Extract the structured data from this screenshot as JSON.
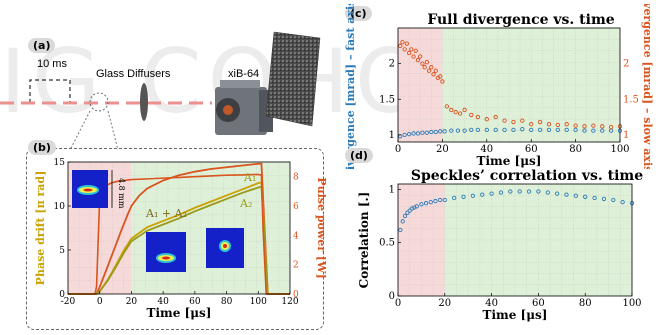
{
  "watermark": "IG COHO",
  "panel_a": {
    "label": "(a)",
    "pulse_label": "10 ms",
    "diffuser_label": "Glass Diffusers",
    "camera_label": "xiB-64"
  },
  "panel_b": {
    "label": "(b)",
    "inset_scale": "4.8 mm",
    "annotations": {
      "sum": "A₁ + A₂",
      "a1": "A₁",
      "a2": "A₂"
    }
  },
  "panel_c": {
    "label": "(c)"
  },
  "panel_d": {
    "label": "(d)"
  },
  "colors": {
    "blue": "#2b7bba",
    "orange": "#d9541e",
    "gold": "#c9a200",
    "green_bg": "#dff0d8",
    "red_bg": "#f6dada"
  },
  "chart_data": [
    {
      "id": "b",
      "type": "line",
      "title": "",
      "xlabel": "Time [μs]",
      "ylabel": "Phase drift [π rad]",
      "y2label": "Pulse power [W]",
      "xlim": [
        -20,
        120
      ],
      "ylim": [
        0,
        15
      ],
      "y2lim": [
        0,
        9
      ],
      "xticks": [
        -20,
        0,
        20,
        40,
        60,
        80,
        100,
        120
      ],
      "yticks": [
        0,
        5,
        10,
        15
      ],
      "y2ticks": [
        0,
        2,
        4,
        6,
        8
      ],
      "regions": [
        {
          "from": -20,
          "to": 20,
          "color": "red_bg"
        },
        {
          "from": 20,
          "to": 120,
          "color": "green_bg"
        }
      ],
      "series": [
        {
          "name": "A₁ + A₂",
          "axis": "left",
          "color": "#d9541e",
          "x": [
            -20,
            -2,
            0,
            3,
            6,
            10,
            14,
            18,
            20,
            25,
            30,
            40,
            50,
            60,
            70,
            80,
            90,
            100,
            102,
            106,
            120
          ],
          "y": [
            0,
            0,
            0.8,
            2.2,
            3.6,
            5.5,
            7.4,
            9.2,
            10,
            11.2,
            12,
            12.9,
            13.5,
            13.9,
            14.2,
            14.4,
            14.6,
            14.8,
            14.8,
            0,
            0
          ]
        },
        {
          "name": "A₁",
          "axis": "left",
          "color": "#c9a200",
          "x": [
            -20,
            -2,
            0,
            5,
            10,
            15,
            20,
            30,
            40,
            50,
            60,
            70,
            80,
            90,
            100,
            102,
            106,
            120
          ],
          "y": [
            0,
            0,
            0.3,
            1.6,
            3.2,
            4.9,
            6.3,
            7.6,
            8.3,
            9.0,
            9.8,
            10.5,
            11.2,
            11.9,
            12.6,
            12.7,
            0,
            0
          ]
        },
        {
          "name": "A₂",
          "axis": "left",
          "color": "#9a9a1a",
          "x": [
            -20,
            -2,
            0,
            5,
            10,
            15,
            20,
            30,
            40,
            50,
            60,
            70,
            80,
            90,
            100,
            102,
            106,
            120
          ],
          "y": [
            0,
            0,
            0.3,
            1.5,
            3.0,
            4.6,
            6.0,
            7.2,
            7.9,
            8.6,
            9.4,
            10.1,
            10.8,
            11.5,
            12.1,
            12.2,
            0,
            0
          ]
        },
        {
          "name": "Pulse power",
          "axis": "right",
          "color": "#d9541e",
          "x": [
            -20,
            -3,
            -2,
            0,
            4,
            8,
            12,
            20,
            30,
            40,
            50,
            60,
            70,
            80,
            90,
            100,
            102,
            103,
            105,
            120
          ],
          "y": [
            0,
            0,
            0.5,
            6.6,
            7.4,
            7.6,
            7.7,
            7.8,
            7.85,
            7.9,
            7.95,
            8.0,
            8.05,
            8.1,
            8.12,
            8.15,
            8.1,
            4.5,
            0,
            0
          ]
        }
      ]
    },
    {
      "id": "c",
      "type": "scatter",
      "title": "Full divergence vs. time",
      "xlabel": "Time [μs]",
      "ylabel": "Divergence [mrad] – fast axis –",
      "y2label": "Divergence [mrad] – slow axis –",
      "xlim": [
        0,
        100
      ],
      "ylim": [
        0.9,
        2.5
      ],
      "y2lim": [
        0.9,
        2.5
      ],
      "xticks": [
        0,
        20,
        40,
        60,
        80,
        100
      ],
      "yticks": [
        1,
        1.5,
        2
      ],
      "y2ticks": [
        1,
        1.5,
        2
      ],
      "regions": [
        {
          "from": 0,
          "to": 20,
          "color": "red_bg"
        },
        {
          "from": 20,
          "to": 100,
          "color": "green_bg"
        }
      ],
      "series": [
        {
          "name": "fast axis",
          "color": "#2b7bba",
          "x": [
            1,
            3,
            5,
            7,
            9,
            11,
            13,
            15,
            17,
            19,
            21,
            24,
            27,
            30,
            33,
            36,
            40,
            44,
            48,
            52,
            56,
            60,
            64,
            68,
            72,
            76,
            80,
            84,
            88,
            92,
            96,
            100
          ],
          "y": [
            0.98,
            1.0,
            1.01,
            1.02,
            1.02,
            1.03,
            1.03,
            1.04,
            1.04,
            1.05,
            1.05,
            1.06,
            1.06,
            1.06,
            1.07,
            1.07,
            1.07,
            1.07,
            1.07,
            1.07,
            1.08,
            1.07,
            1.07,
            1.07,
            1.07,
            1.07,
            1.07,
            1.06,
            1.06,
            1.06,
            1.06,
            1.06
          ]
        },
        {
          "name": "slow axis",
          "color": "#d9541e",
          "x": [
            1,
            2,
            3,
            4,
            5,
            6,
            7,
            8,
            9,
            10,
            11,
            12,
            13,
            14,
            15,
            16,
            17,
            18,
            19,
            20,
            22,
            24,
            26,
            28,
            30,
            33,
            36,
            40,
            44,
            48,
            52,
            56,
            60,
            64,
            68,
            72,
            76,
            80,
            84,
            88,
            92,
            96,
            100
          ],
          "y": [
            2.25,
            2.3,
            2.2,
            2.28,
            2.15,
            2.2,
            2.1,
            2.18,
            2.05,
            2.1,
            2.0,
            1.95,
            2.02,
            1.9,
            1.95,
            1.85,
            1.9,
            1.8,
            1.82,
            1.75,
            1.4,
            1.35,
            1.32,
            1.3,
            1.35,
            1.28,
            1.25,
            1.22,
            1.25,
            1.2,
            1.18,
            1.2,
            1.15,
            1.18,
            1.15,
            1.14,
            1.15,
            1.13,
            1.12,
            1.13,
            1.12,
            1.11,
            1.12
          ]
        }
      ]
    },
    {
      "id": "d",
      "type": "scatter",
      "title": "Speckles’ correlation vs. time",
      "xlabel": "Time [μs]",
      "ylabel": "Correlation [.]",
      "xlim": [
        0,
        100
      ],
      "ylim": [
        0,
        1.05
      ],
      "xticks": [
        0,
        20,
        40,
        60,
        80,
        100
      ],
      "yticks": [
        0,
        0.5,
        1
      ],
      "regions": [
        {
          "from": 0,
          "to": 20,
          "color": "red_bg"
        },
        {
          "from": 20,
          "to": 100,
          "color": "green_bg"
        }
      ],
      "series": [
        {
          "name": "correlation",
          "color": "#2b7bba",
          "x": [
            1,
            2,
            3,
            4,
            5,
            6,
            7,
            8,
            10,
            12,
            14,
            16,
            18,
            20,
            24,
            28,
            32,
            36,
            40,
            44,
            48,
            52,
            56,
            60,
            64,
            68,
            72,
            76,
            80,
            84,
            88,
            92,
            96,
            100
          ],
          "y": [
            0.62,
            0.7,
            0.75,
            0.78,
            0.8,
            0.82,
            0.83,
            0.84,
            0.86,
            0.87,
            0.88,
            0.89,
            0.9,
            0.9,
            0.92,
            0.93,
            0.94,
            0.95,
            0.96,
            0.97,
            0.98,
            0.98,
            0.98,
            0.98,
            0.97,
            0.96,
            0.95,
            0.94,
            0.93,
            0.92,
            0.91,
            0.9,
            0.88,
            0.87
          ]
        }
      ]
    }
  ]
}
